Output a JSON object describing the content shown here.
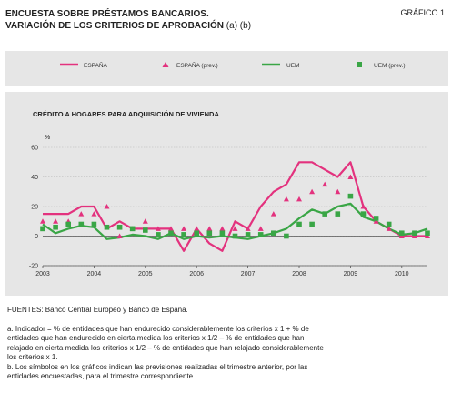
{
  "header": {
    "title_line1": "ENCUESTA SOBRE PRÉSTAMOS BANCARIOS.",
    "title_line2": "VARIACIÓN DE LOS CRITERIOS DE APROBACIÓN",
    "title_marks": "(a) (b)",
    "figure_label": "GRÁFICO 1"
  },
  "legend": {
    "items": [
      {
        "label": "ESPAÑA",
        "kind": "line",
        "color": "#e3327e"
      },
      {
        "label": "ESPAÑA (prev.)",
        "kind": "triangle",
        "color": "#e3327e"
      },
      {
        "label": "UEM",
        "kind": "line",
        "color": "#3aa646"
      },
      {
        "label": "UEM (prev.)",
        "kind": "square",
        "color": "#3aa646"
      }
    ]
  },
  "chart_data": {
    "type": "line",
    "title": "CRÉDITO A HOGARES PARA ADQUISICIÓN DE VIVIENDA",
    "ylabel": "%",
    "ylim": [
      -20,
      60
    ],
    "yticks": [
      -20,
      0,
      20,
      40,
      60
    ],
    "xlim": [
      2003.0,
      2010.5
    ],
    "xticks": [
      "2003",
      "2004",
      "2005",
      "2006",
      "2007",
      "2008",
      "2009",
      "2010"
    ],
    "zero_line": true,
    "series": [
      {
        "name": "ESPAÑA",
        "kind": "line",
        "color": "#e3327e",
        "points": [
          [
            2003.0,
            15
          ],
          [
            2003.25,
            15
          ],
          [
            2003.5,
            15
          ],
          [
            2003.75,
            20
          ],
          [
            2004.0,
            20
          ],
          [
            2004.25,
            5
          ],
          [
            2004.5,
            10
          ],
          [
            2004.75,
            5
          ],
          [
            2005.0,
            5
          ],
          [
            2005.25,
            5
          ],
          [
            2005.5,
            5
          ],
          [
            2005.75,
            -10
          ],
          [
            2006.0,
            5
          ],
          [
            2006.25,
            -5
          ],
          [
            2006.5,
            -10
          ],
          [
            2006.75,
            10
          ],
          [
            2007.0,
            5
          ],
          [
            2007.25,
            20
          ],
          [
            2007.5,
            30
          ],
          [
            2007.75,
            35
          ],
          [
            2008.0,
            50
          ],
          [
            2008.25,
            50
          ],
          [
            2008.5,
            45
          ],
          [
            2008.75,
            40
          ],
          [
            2009.0,
            50
          ],
          [
            2009.25,
            20
          ],
          [
            2009.5,
            10
          ],
          [
            2009.75,
            5
          ],
          [
            2010.0,
            0
          ],
          [
            2010.25,
            0
          ],
          [
            2010.5,
            0
          ]
        ]
      },
      {
        "name": "ESPAÑA (prev.)",
        "kind": "triangle",
        "color": "#e3327e",
        "points": [
          [
            2003.0,
            10
          ],
          [
            2003.25,
            10
          ],
          [
            2003.5,
            10
          ],
          [
            2003.75,
            15
          ],
          [
            2004.0,
            15
          ],
          [
            2004.25,
            20
          ],
          [
            2004.5,
            0
          ],
          [
            2004.75,
            5
          ],
          [
            2005.0,
            10
          ],
          [
            2005.25,
            5
          ],
          [
            2005.5,
            5
          ],
          [
            2005.75,
            5
          ],
          [
            2006.0,
            5
          ],
          [
            2006.25,
            5
          ],
          [
            2006.5,
            5
          ],
          [
            2006.75,
            5
          ],
          [
            2007.0,
            5
          ],
          [
            2007.25,
            5
          ],
          [
            2007.5,
            15
          ],
          [
            2007.75,
            25
          ],
          [
            2008.0,
            25
          ],
          [
            2008.25,
            30
          ],
          [
            2008.5,
            35
          ],
          [
            2008.75,
            30
          ],
          [
            2009.0,
            40
          ],
          [
            2009.25,
            20
          ],
          [
            2009.5,
            10
          ],
          [
            2009.75,
            5
          ],
          [
            2010.0,
            0
          ],
          [
            2010.25,
            0
          ],
          [
            2010.5,
            0
          ]
        ]
      },
      {
        "name": "UEM",
        "kind": "line",
        "color": "#3aa646",
        "points": [
          [
            2003.0,
            8
          ],
          [
            2003.25,
            2
          ],
          [
            2003.5,
            5
          ],
          [
            2003.75,
            7
          ],
          [
            2004.0,
            6
          ],
          [
            2004.25,
            -2
          ],
          [
            2004.5,
            -1
          ],
          [
            2004.75,
            1
          ],
          [
            2005.0,
            0
          ],
          [
            2005.25,
            -2
          ],
          [
            2005.5,
            2
          ],
          [
            2005.75,
            -2
          ],
          [
            2006.0,
            0
          ],
          [
            2006.25,
            -1
          ],
          [
            2006.5,
            0
          ],
          [
            2006.75,
            -1
          ],
          [
            2007.0,
            -2
          ],
          [
            2007.25,
            0
          ],
          [
            2007.5,
            2
          ],
          [
            2007.75,
            5
          ],
          [
            2008.0,
            12
          ],
          [
            2008.25,
            18
          ],
          [
            2008.5,
            15
          ],
          [
            2008.75,
            20
          ],
          [
            2009.0,
            22
          ],
          [
            2009.25,
            13
          ],
          [
            2009.5,
            10
          ],
          [
            2009.75,
            5
          ],
          [
            2010.0,
            1
          ],
          [
            2010.25,
            2
          ],
          [
            2010.5,
            5
          ]
        ]
      },
      {
        "name": "UEM (prev.)",
        "kind": "square",
        "color": "#3aa646",
        "points": [
          [
            2003.0,
            5
          ],
          [
            2003.25,
            6
          ],
          [
            2003.5,
            8
          ],
          [
            2003.75,
            8
          ],
          [
            2004.0,
            8
          ],
          [
            2004.25,
            6
          ],
          [
            2004.5,
            6
          ],
          [
            2004.75,
            5
          ],
          [
            2005.0,
            4
          ],
          [
            2005.25,
            1
          ],
          [
            2005.5,
            2
          ],
          [
            2005.75,
            1
          ],
          [
            2006.0,
            2
          ],
          [
            2006.25,
            2
          ],
          [
            2006.5,
            2
          ],
          [
            2006.75,
            0
          ],
          [
            2007.0,
            1
          ],
          [
            2007.25,
            1
          ],
          [
            2007.5,
            2
          ],
          [
            2007.75,
            0
          ],
          [
            2008.0,
            8
          ],
          [
            2008.25,
            8
          ],
          [
            2008.5,
            15
          ],
          [
            2008.75,
            15
          ],
          [
            2009.0,
            27
          ],
          [
            2009.25,
            15
          ],
          [
            2009.5,
            12
          ],
          [
            2009.75,
            8
          ],
          [
            2010.0,
            2
          ],
          [
            2010.25,
            2
          ],
          [
            2010.5,
            2
          ]
        ]
      }
    ]
  },
  "notes": {
    "source": "FUENTES: Banco Central Europeo y Banco de España.",
    "a_line1": "a. Indicador = % de entidades que han endurecido considerablemente los criterios x 1 + % de",
    "a_line2": "entidades que han endurecido en cierta medida los criterios x 1/2 – % de entidades que han",
    "a_line3": "relajado en cierta medida los criterios x 1/2 – % de entidades que han relajado considerablemente",
    "a_line4": "los criterios x 1.",
    "b_line1": "b. Los símbolos en los gráficos indican las previsiones realizadas el trimestre anterior, por las",
    "b_line2": "entidades encuestadas, para el trimestre correspondiente."
  }
}
